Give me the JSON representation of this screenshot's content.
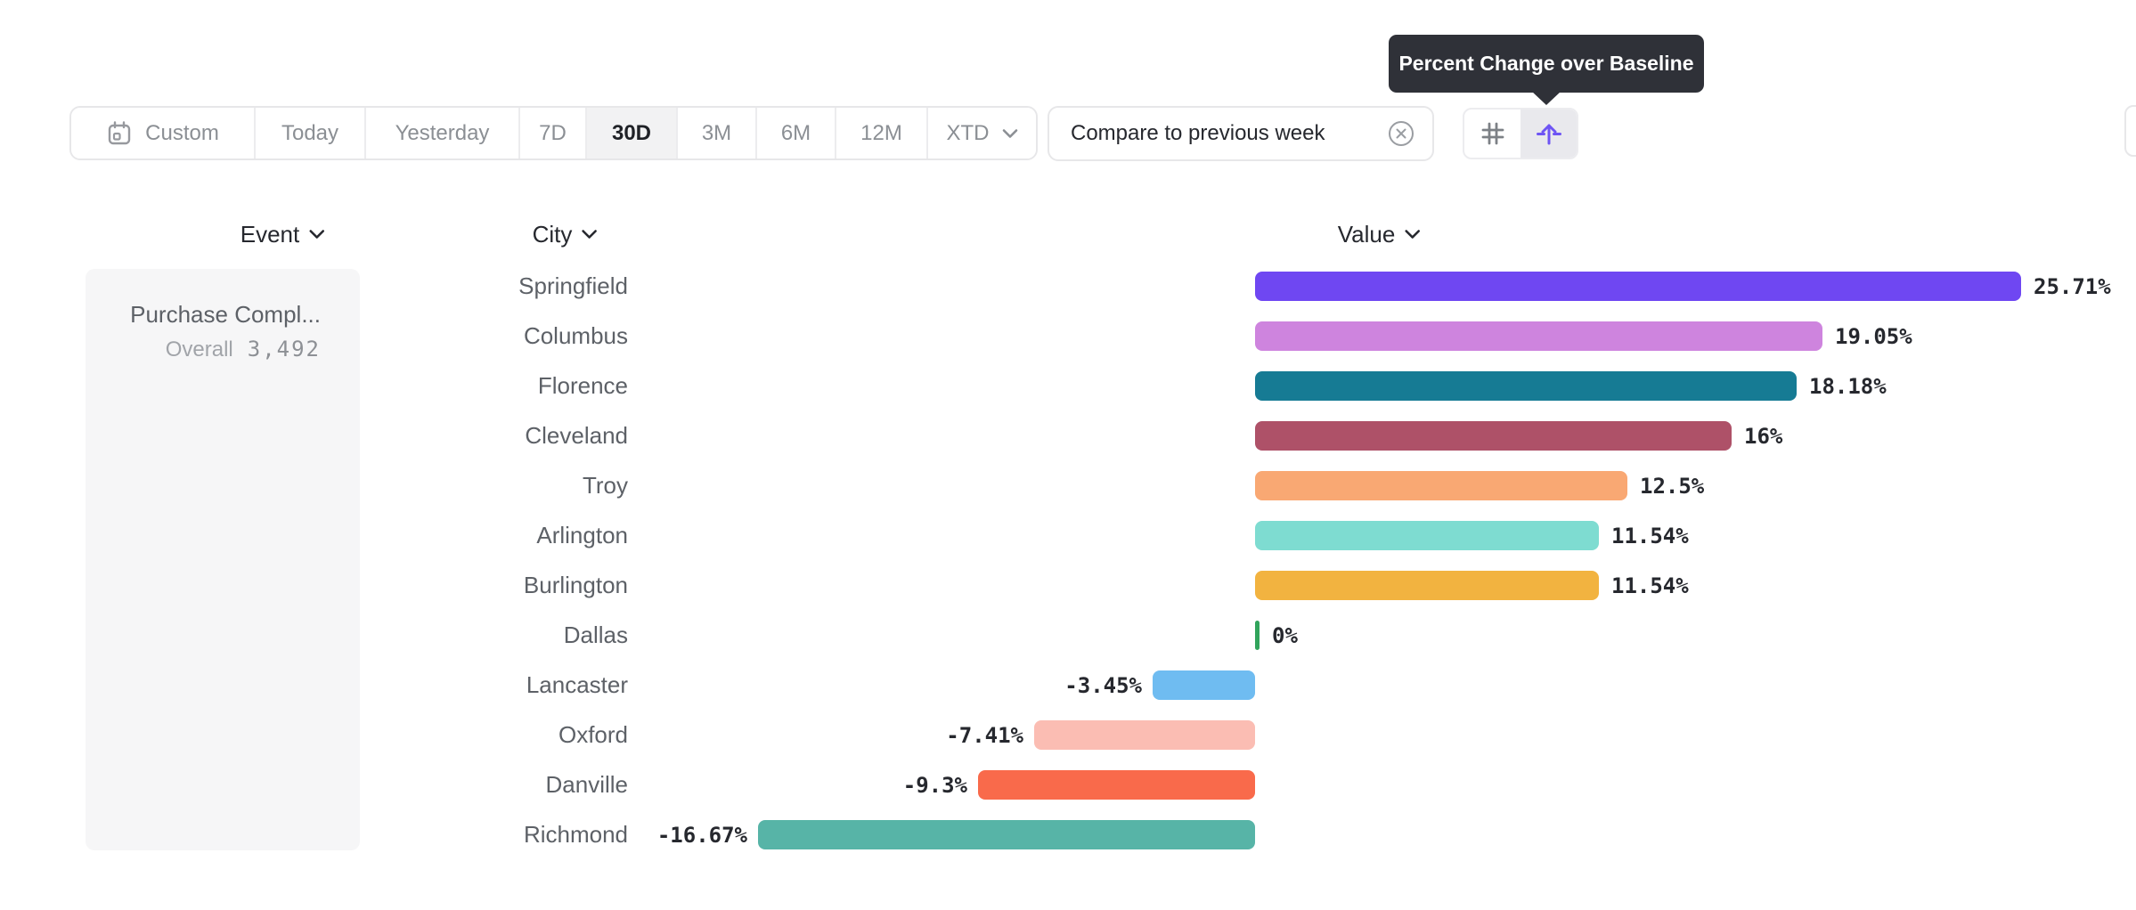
{
  "tooltip": {
    "text": "Percent Change over Baseline"
  },
  "toolbar": {
    "date_ranges": [
      {
        "label": "Custom",
        "icon": "calendar",
        "selected": false
      },
      {
        "label": "Today",
        "selected": false
      },
      {
        "label": "Yesterday",
        "selected": false
      },
      {
        "label": "7D",
        "selected": false
      },
      {
        "label": "30D",
        "selected": true
      },
      {
        "label": "3M",
        "selected": false
      },
      {
        "label": "6M",
        "selected": false
      },
      {
        "label": "12M",
        "selected": false
      },
      {
        "label": "XTD",
        "icon": "chevron-down",
        "selected": false
      }
    ],
    "compare_chip": {
      "label": "Compare to previous week",
      "close_icon": "x-circle"
    },
    "view_toggle": [
      {
        "icon": "hash-grid",
        "selected": false,
        "color": "#7d8186"
      },
      {
        "icon": "baseline-arrow",
        "selected": true,
        "color": "#6e55f4"
      }
    ]
  },
  "table": {
    "columns": [
      {
        "label": "Event",
        "icon": "chevron-down"
      },
      {
        "label": "City",
        "icon": "chevron-down"
      },
      {
        "label": "Value",
        "icon": "chevron-down"
      }
    ],
    "event_card": {
      "title": "Purchase Compl...",
      "overall_label": "Overall",
      "overall_value": "3,492"
    }
  },
  "chart_data": {
    "type": "bar",
    "orientation": "horizontal",
    "value_unit": "percent",
    "title": "Percent Change over Baseline",
    "categories": [
      "Springfield",
      "Columbus",
      "Florence",
      "Cleveland",
      "Troy",
      "Arlington",
      "Burlington",
      "Dallas",
      "Lancaster",
      "Oxford",
      "Danville",
      "Richmond"
    ],
    "values": [
      25.71,
      19.05,
      18.18,
      16,
      12.5,
      11.54,
      11.54,
      0,
      -3.45,
      -7.41,
      -9.3,
      -16.67
    ],
    "value_labels": [
      "25.71%",
      "19.05%",
      "18.18%",
      "16%",
      "12.5%",
      "11.54%",
      "11.54%",
      "0%",
      "-3.45%",
      "-7.41%",
      "-9.3%",
      "-16.67%"
    ],
    "bar_colors": [
      "#6f47f2",
      "#ce84de",
      "#167b94",
      "#ae5168",
      "#f9a873",
      "#7edcd1",
      "#f2b340",
      "#31a45c",
      "#6fbcf1",
      "#fbbdb3",
      "#f96a4b",
      "#57b4a7"
    ],
    "xlim": [
      -16.67,
      25.71
    ],
    "baseline": 0,
    "grid": false,
    "legend": false
  }
}
